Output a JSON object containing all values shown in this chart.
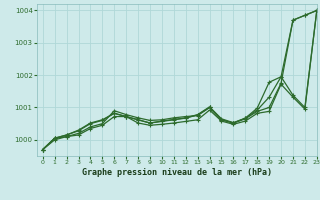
{
  "title": "Graphe pression niveau de la mer (hPa)",
  "bg_color": "#ceeaea",
  "grid_color": "#b0d8d8",
  "line_color": "#2d6b2d",
  "xlim": [
    -0.5,
    23
  ],
  "ylim": [
    999.5,
    1004.2
  ],
  "yticks": [
    1000,
    1001,
    1002,
    1003,
    1004
  ],
  "xticks": [
    0,
    1,
    2,
    3,
    4,
    5,
    6,
    7,
    8,
    9,
    10,
    11,
    12,
    13,
    14,
    15,
    16,
    17,
    18,
    19,
    20,
    21,
    22,
    23
  ],
  "series": [
    [
      999.7,
      1000.05,
      1000.1,
      1000.2,
      1000.4,
      1000.5,
      1000.9,
      1000.78,
      1000.68,
      1000.6,
      1000.62,
      1000.68,
      1000.72,
      1000.75,
      1001.0,
      1000.62,
      1000.52,
      1000.65,
      1000.88,
      1001.0,
      1001.75,
      1003.7,
      1003.85,
      1004.0
    ],
    [
      999.7,
      1000.05,
      1000.15,
      1000.3,
      1000.52,
      1000.62,
      1000.82,
      1000.72,
      1000.62,
      1000.52,
      1000.58,
      1000.63,
      1000.68,
      1000.78,
      1001.02,
      1000.65,
      1000.53,
      1000.67,
      1000.98,
      1001.78,
      1001.95,
      1001.38,
      1001.0,
      1004.0
    ],
    [
      999.7,
      1000.05,
      1000.15,
      1000.28,
      1000.5,
      1000.6,
      1000.82,
      1000.72,
      1000.62,
      1000.52,
      1000.57,
      1000.62,
      1000.67,
      1000.77,
      1001.0,
      1000.62,
      1000.52,
      1000.67,
      1000.92,
      1001.32,
      1001.95,
      1003.7,
      1003.85,
      1004.0
    ],
    [
      999.7,
      1000.0,
      1000.1,
      1000.15,
      1000.35,
      1000.45,
      1000.72,
      1000.72,
      1000.52,
      1000.45,
      1000.48,
      1000.52,
      1000.57,
      1000.62,
      1000.92,
      1000.58,
      1000.48,
      1000.58,
      1000.82,
      1000.88,
      1001.72,
      1001.32,
      1000.95,
      1004.0
    ]
  ]
}
